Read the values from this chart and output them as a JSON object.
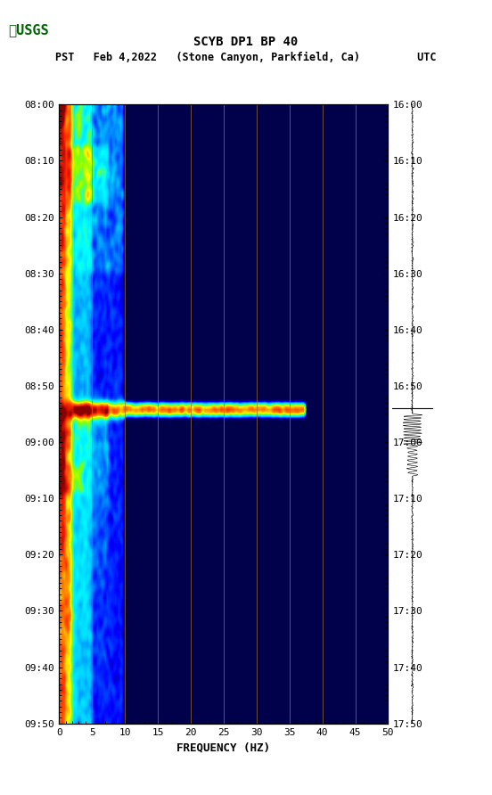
{
  "title_line1": "SCYB DP1 BP 40",
  "title_line2": "PST   Feb 4,2022   (Stone Canyon, Parkfield, Ca)         UTC",
  "xlabel": "FREQUENCY (HZ)",
  "ylabel_left": "PST",
  "ylabel_right": "UTC",
  "freq_min": 0,
  "freq_max": 50,
  "freq_ticks": [
    0,
    5,
    10,
    15,
    20,
    25,
    30,
    35,
    40,
    45,
    50
  ],
  "time_ticks_left": [
    "08:00",
    "08:10",
    "08:20",
    "08:30",
    "08:40",
    "08:50",
    "09:00",
    "09:10",
    "09:20",
    "09:30",
    "09:40",
    "09:50"
  ],
  "time_ticks_right": [
    "16:00",
    "16:10",
    "16:20",
    "16:30",
    "16:40",
    "16:50",
    "17:00",
    "17:10",
    "17:20",
    "17:30",
    "17:40",
    "17:50"
  ],
  "n_time": 110,
  "n_freq": 200,
  "background_color": "#ffffff",
  "spectrogram_bg": "#00008B",
  "vertical_line_color": "#8B6914",
  "vertical_line_alpha": 0.6,
  "colormap_colors": [
    "#00008B",
    "#0000CD",
    "#0066FF",
    "#00AAFF",
    "#00FFFF",
    "#00FF88",
    "#88FF00",
    "#FFFF00",
    "#FF8800",
    "#FF0000",
    "#8B0000"
  ],
  "logo_text": "USGS",
  "fig_width": 5.52,
  "fig_height": 8.92
}
